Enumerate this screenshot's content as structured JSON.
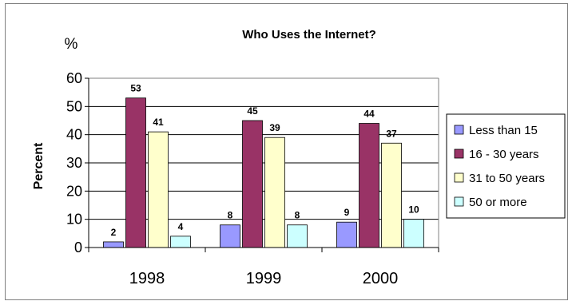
{
  "chart_data": {
    "type": "bar",
    "title": "Who Uses the Internet?",
    "unit_label": "%",
    "ylabel": "Percent",
    "xlabel": "",
    "categories": [
      "1998",
      "1999",
      "2000"
    ],
    "series": [
      {
        "name": "Less than 15",
        "values": [
          2,
          8,
          9
        ],
        "color": "#9999FF"
      },
      {
        "name": "16 - 30 years",
        "values": [
          53,
          45,
          44
        ],
        "color": "#993366"
      },
      {
        "name": "31 to 50 years",
        "values": [
          41,
          39,
          37
        ],
        "color": "#FFFFCC"
      },
      {
        "name": "50 or more",
        "values": [
          4,
          8,
          10
        ],
        "color": "#CCFFFF"
      }
    ],
    "ylim": [
      0,
      60
    ],
    "yticks": [
      0,
      10,
      20,
      30,
      40,
      50,
      60
    ],
    "grid": true,
    "legend_position": "right"
  }
}
